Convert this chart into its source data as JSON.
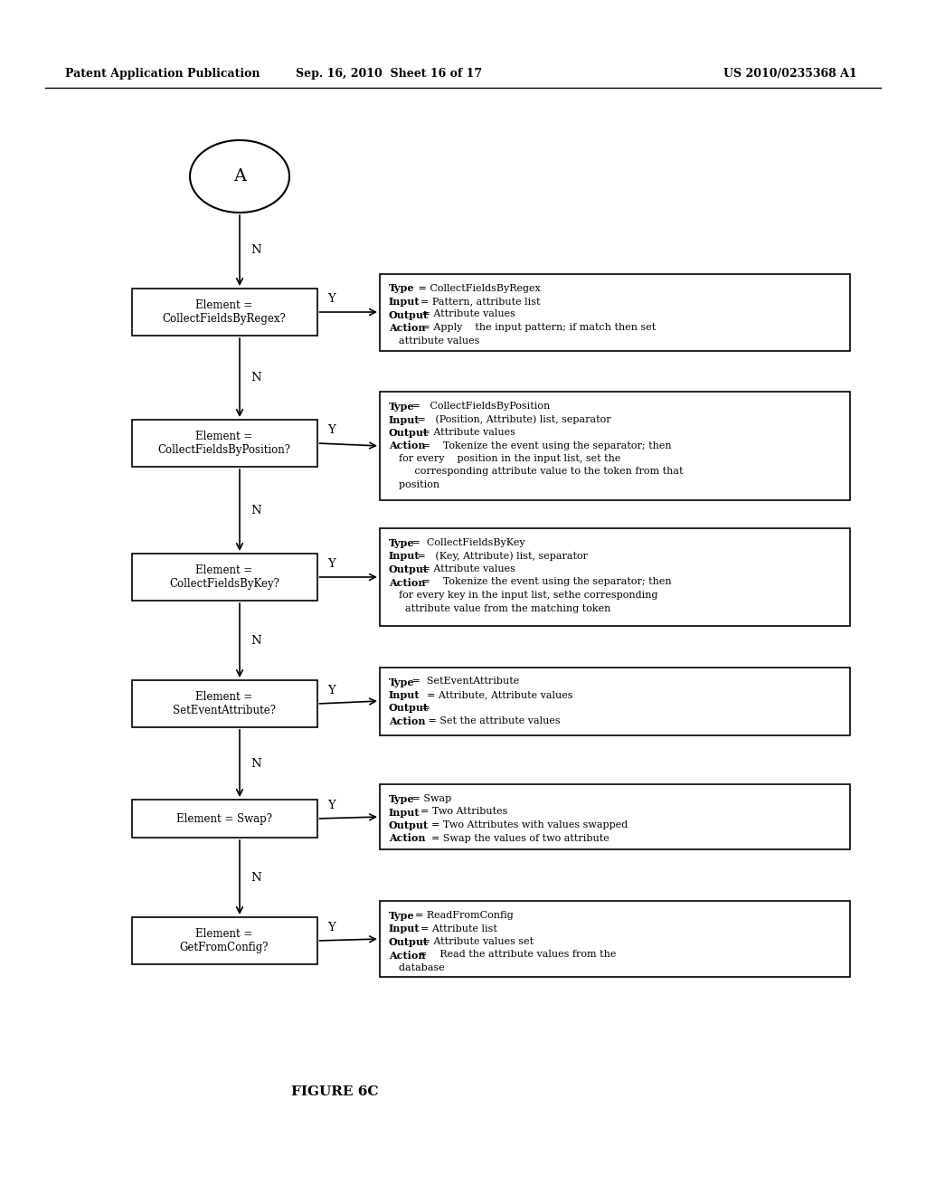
{
  "header_left": "Patent Application Publication",
  "header_center": "Sep. 16, 2010  Sheet 16 of 17",
  "header_right": "US 2010/0235368 A1",
  "figure_label": "FIGURE 6C",
  "circle_label": "A",
  "dec_labels": [
    "Element =\nCollectFieldsByRegex?",
    "Element =\nCollectFieldsByPosition?",
    "Element =\nCollectFieldsByKey?",
    "Element =\nSetEventAttribute?",
    "Element = Swap?",
    "Element =\nGetFromConfig?"
  ],
  "info_contents": [
    [
      [
        "Type",
        "   = CollectFieldsByRegex"
      ],
      [
        "Input",
        "  = Pattern, attribute list"
      ],
      [
        "Output",
        " = Attribute values"
      ],
      [
        "Action",
        " = Apply    the input pattern; if match then set"
      ],
      [
        "",
        "  attribute values"
      ]
    ],
    [
      [
        "Type",
        " =   CollectFieldsByPosition"
      ],
      [
        "Input",
        " =   (Position, Attribute) list, separator"
      ],
      [
        "Output",
        " = Attribute values"
      ],
      [
        "Action",
        " =    Tokenize the event using the separator; then"
      ],
      [
        "",
        "  for every    position in the input list, set the"
      ],
      [
        "",
        "       corresponding attribute value to the token from that"
      ],
      [
        "",
        "  position"
      ]
    ],
    [
      [
        "Type",
        " =  CollectFieldsByKey"
      ],
      [
        "Input",
        " =   (Key, Attribute) list, separator"
      ],
      [
        "Output",
        " = Attribute values"
      ],
      [
        "Action",
        " =    Tokenize the event using the separator; then"
      ],
      [
        "",
        "  for every key in the input list, sethe corresponding"
      ],
      [
        "",
        "    attribute value from the matching token"
      ]
    ],
    [
      [
        "Type",
        " =  SetEventAttribute"
      ],
      [
        "Input",
        "    = Attribute, Attribute values"
      ],
      [
        "Output",
        " ="
      ],
      [
        "Action",
        "   = Set the attribute values"
      ]
    ],
    [
      [
        "Type",
        " = Swap"
      ],
      [
        "Input",
        "  = Two Attributes"
      ],
      [
        "Output",
        "    = Two Attributes with values swapped"
      ],
      [
        "Action",
        "    = Swap the values of two attribute"
      ]
    ],
    [
      [
        "Type",
        "  = ReadFromConfig"
      ],
      [
        "Input",
        "  = Attribute list"
      ],
      [
        "Output",
        " = Attribute values set"
      ],
      [
        "Action",
        "=    Read the attribute values from the"
      ],
      [
        "",
        "  database"
      ]
    ]
  ]
}
